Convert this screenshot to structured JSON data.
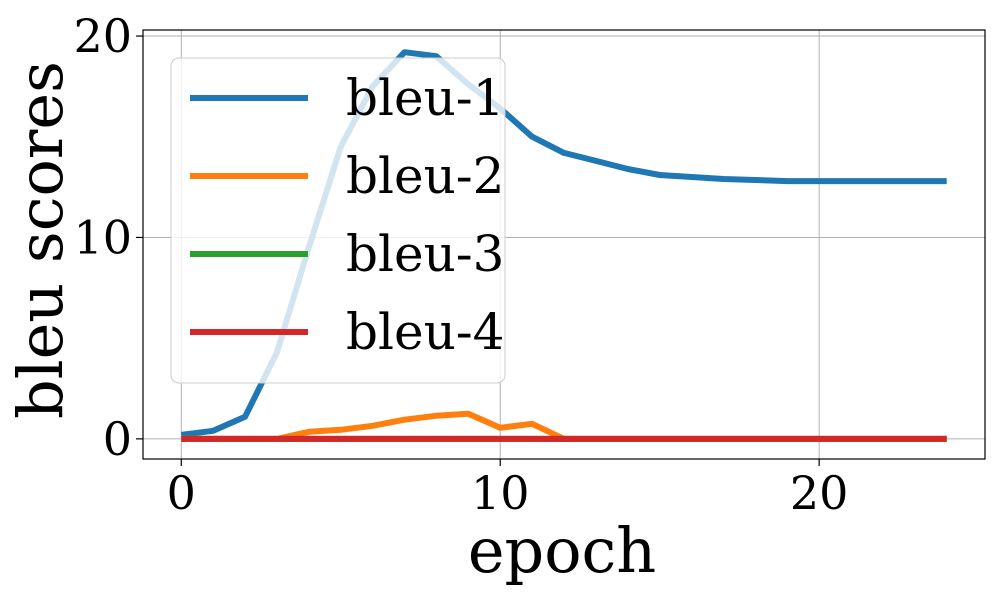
{
  "chart_data": {
    "type": "line",
    "xlabel": "epoch",
    "ylabel": "bleu scores",
    "xlim": [
      -1.2,
      25.2
    ],
    "ylim": [
      -1,
      20.3
    ],
    "xticks": [
      0,
      10,
      20
    ],
    "yticks": [
      0,
      10,
      20
    ],
    "grid": true,
    "legend_position": "upper-left",
    "x": [
      0,
      1,
      2,
      3,
      4,
      5,
      6,
      7,
      8,
      9,
      10,
      11,
      12,
      13,
      14,
      15,
      16,
      17,
      18,
      19,
      20,
      21,
      22,
      23,
      24
    ],
    "series": [
      {
        "name": "bleu-1",
        "color": "#1f77b4",
        "values": [
          0.2,
          0.4,
          1.1,
          4.3,
          9.5,
          14.5,
          17.5,
          19.2,
          19.0,
          17.6,
          16.4,
          15.0,
          14.2,
          13.8,
          13.4,
          13.1,
          13.0,
          12.9,
          12.85,
          12.8,
          12.8,
          12.8,
          12.8,
          12.8,
          12.8
        ]
      },
      {
        "name": "bleu-2",
        "color": "#ff7f0e",
        "values": [
          0,
          0,
          0,
          0,
          0.35,
          0.45,
          0.65,
          0.95,
          1.15,
          1.25,
          0.55,
          0.75,
          0,
          0,
          0,
          0,
          0,
          0,
          0,
          0,
          0,
          0,
          0,
          0,
          0
        ]
      },
      {
        "name": "bleu-3",
        "color": "#2ca02c",
        "values": [
          0,
          0,
          0,
          0,
          0,
          0,
          0,
          0,
          0,
          0,
          0,
          0,
          0,
          0,
          0,
          0,
          0,
          0,
          0,
          0,
          0,
          0,
          0,
          0,
          0
        ]
      },
      {
        "name": "bleu-4",
        "color": "#d62728",
        "values": [
          0,
          0,
          0,
          0,
          0,
          0,
          0,
          0,
          0,
          0,
          0,
          0,
          0,
          0,
          0,
          0,
          0,
          0,
          0,
          0,
          0,
          0,
          0,
          0,
          0
        ]
      }
    ]
  }
}
